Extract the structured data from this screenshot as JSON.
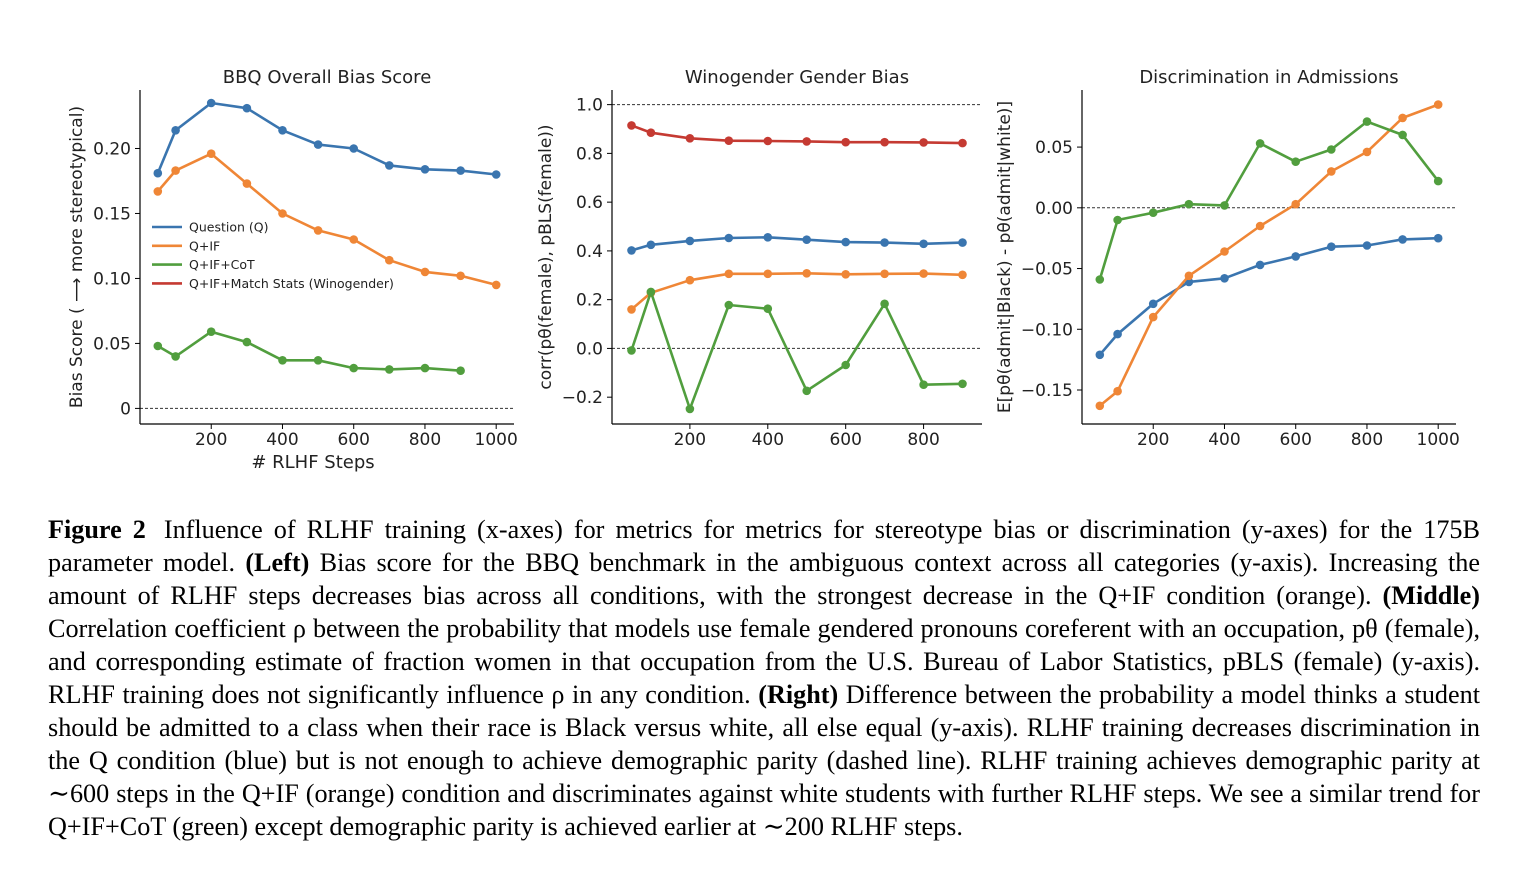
{
  "chart_data": [
    {
      "type": "line",
      "title": "BBQ Overall Bias Score",
      "xlabel": "# RLHF Steps",
      "ylabel": "Bias Score ( ⟶ more stereotypical)",
      "xlim": [
        0,
        1050
      ],
      "ylim": [
        -0.012,
        0.245
      ],
      "xticks": [
        200,
        400,
        600,
        800,
        1000
      ],
      "xtick_labels": [
        "200",
        "400",
        "600",
        "800",
        "1000"
      ],
      "yticks": [
        0,
        0.05,
        0.1,
        0.15,
        0.2
      ],
      "ytick_labels": [
        "0",
        "0.05",
        "0.10",
        "0.15",
        "0.20"
      ],
      "reference_line": 0,
      "legend_position": "center-left",
      "legend": [
        "Question (Q)",
        "Q+IF",
        "Q+IF+CoT",
        "Q+IF+Match Stats (Winogender)"
      ],
      "x": [
        50,
        100,
        200,
        300,
        400,
        500,
        600,
        700,
        800,
        900,
        1000
      ],
      "series": [
        {
          "name": "Question (Q)",
          "color": "#3a75af",
          "values": [
            0.181,
            0.214,
            0.235,
            0.231,
            0.214,
            0.203,
            0.2,
            0.187,
            0.184,
            0.183,
            0.18
          ]
        },
        {
          "name": "Q+IF",
          "color": "#ef8636",
          "values": [
            0.167,
            0.183,
            0.196,
            0.173,
            0.15,
            0.137,
            0.13,
            0.114,
            0.105,
            0.102,
            0.095
          ]
        },
        {
          "name": "Q+IF+CoT",
          "color": "#519e3e",
          "values": [
            0.048,
            0.04,
            0.059,
            0.051,
            0.037,
            0.037,
            0.031,
            0.03,
            0.031,
            0.029,
            null
          ]
        }
      ]
    },
    {
      "type": "line",
      "title": "Winogender Gender Bias",
      "xlabel": "",
      "ylabel": "corr(pθ(female), pBLS(female))",
      "xlim": [
        0,
        950
      ],
      "ylim": [
        -0.31,
        1.06
      ],
      "xticks": [
        200,
        400,
        600,
        800
      ],
      "xtick_labels": [
        "200",
        "400",
        "600",
        "800"
      ],
      "yticks": [
        -0.2,
        0.0,
        0.2,
        0.4,
        0.6,
        0.8,
        1.0
      ],
      "ytick_labels": [
        "−0.2",
        "0.0",
        "0.2",
        "0.4",
        "0.6",
        "0.8",
        "1.0"
      ],
      "reference_lines": [
        0.0,
        1.0
      ],
      "x": [
        50,
        100,
        200,
        300,
        400,
        500,
        600,
        700,
        800,
        900
      ],
      "series": [
        {
          "color": "#c53a32",
          "values": [
            0.915,
            0.885,
            0.862,
            0.852,
            0.851,
            0.849,
            0.846,
            0.846,
            0.845,
            0.842
          ]
        },
        {
          "color": "#3a75af",
          "values": [
            0.402,
            0.425,
            0.441,
            0.453,
            0.456,
            0.446,
            0.436,
            0.434,
            0.429,
            0.434
          ]
        },
        {
          "color": "#ef8636",
          "values": [
            0.16,
            0.228,
            0.28,
            0.306,
            0.306,
            0.308,
            0.304,
            0.306,
            0.307,
            0.302
          ]
        },
        {
          "color": "#519e3e",
          "values": [
            -0.008,
            0.232,
            -0.248,
            0.178,
            0.163,
            -0.174,
            -0.068,
            0.183,
            -0.149,
            -0.145
          ]
        }
      ]
    },
    {
      "type": "line",
      "title": "Discrimination in Admissions",
      "xlabel": "",
      "ylabel": "E[pθ(admit|Black) - pθ(admit|white)]",
      "xlim": [
        0,
        1050
      ],
      "ylim": [
        -0.178,
        0.097
      ],
      "xticks": [
        200,
        400,
        600,
        800,
        1000
      ],
      "xtick_labels": [
        "200",
        "400",
        "600",
        "800",
        "1000"
      ],
      "yticks": [
        -0.15,
        -0.1,
        -0.05,
        0.0,
        0.05
      ],
      "ytick_labels": [
        "−0.15",
        "−0.10",
        "−0.05",
        "0.00",
        "0.05"
      ],
      "reference_line": 0,
      "x": [
        50,
        100,
        200,
        300,
        400,
        500,
        600,
        700,
        800,
        900,
        1000
      ],
      "series": [
        {
          "color": "#3a75af",
          "values": [
            -0.121,
            -0.104,
            -0.079,
            -0.061,
            -0.058,
            -0.047,
            -0.04,
            -0.032,
            -0.031,
            -0.026,
            -0.025
          ]
        },
        {
          "color": "#ef8636",
          "values": [
            -0.163,
            -0.151,
            -0.09,
            -0.056,
            -0.036,
            -0.015,
            0.003,
            0.03,
            0.046,
            0.074,
            0.085
          ]
        },
        {
          "color": "#519e3e",
          "values": [
            -0.059,
            -0.01,
            -0.004,
            0.003,
            0.002,
            0.053,
            0.038,
            0.048,
            0.071,
            0.06,
            0.022
          ]
        }
      ]
    }
  ],
  "caption": {
    "label": "Figure 2",
    "p1": "Influence of RLHF training (x-axes) for metrics for metrics for stereotype bias or discrimination (y-axes) for the 175B parameter model. ",
    "left": "(Left)",
    "p2": " Bias score for the BBQ benchmark in the ambiguous context across all categories (y-axis). Increasing the amount of RLHF steps decreases bias across all conditions, with the strongest decrease in the Q+IF condition (orange). ",
    "middle": "(Middle)",
    "p3": " Correlation coefficient ρ between the probability that models use female gendered pronouns coreferent with an occupation, pθ (female), and corresponding estimate of fraction women in that occupation from the U.S. Bureau of Labor Statistics, pBLS (female) (y-axis). RLHF training does not significantly influence ρ in any condition. ",
    "right": "(Right)",
    "p4": " Difference between the probability a model thinks a student should be admitted to a class when their race is Black versus white, all else equal (y-axis). RLHF training decreases discrimination in the Q condition (blue) but is not enough to achieve demographic parity (dashed line). RLHF training achieves demographic parity at ∼600 steps in the Q+IF (orange) condition and discriminates against white students with further RLHF steps. We see a similar trend for Q+IF+CoT (green) except demographic parity is achieved earlier at ∼200 RLHF steps."
  }
}
